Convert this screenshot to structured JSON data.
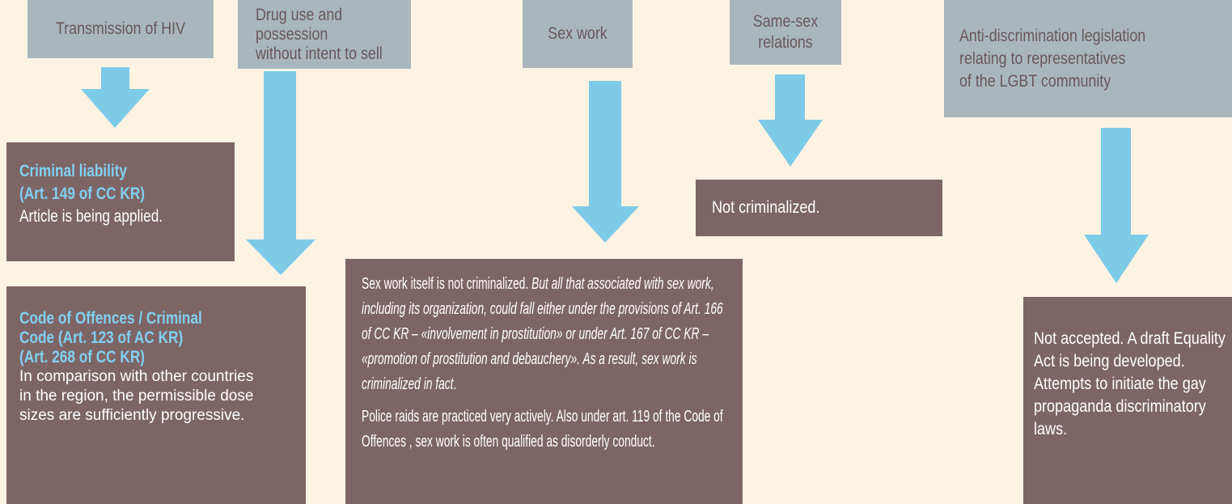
{
  "columns": [
    {
      "topic": [
        "Transmission of HIV"
      ],
      "result": {
        "heading": [
          "Criminal liability",
          "(Art. 149 of CC KR)"
        ],
        "body": [
          "Article is being applied."
        ]
      }
    },
    {
      "topic": [
        "Drug use and possession",
        "without intent to sell"
      ],
      "result": {
        "heading": [
          "Code of Offences / Criminal",
          "Code (Art. 123 of AC KR)",
          "(Art. 268 of CC KR)"
        ],
        "body": [
          "In comparison with other countries in the region, the permissible dose sizes are sufficiently progressive."
        ]
      }
    },
    {
      "topic": [
        "Sex work"
      ],
      "result": {
        "paragraphs": [
          [
            "Sex work itself is not criminalized. ",
            "But all that associated with sex work, including its organization, could fall either under the provisions of Art. 166 of CC KR – «involvement in prostitution» or under Art. 167 of CC KR – «promotion of prostitution and debauchery». As a result, sex work is criminalized in fact",
            "."
          ],
          [
            "Police raids are practiced very actively. Also under art. 119 of the Code of Offences , sex work is often qualified as disorderly conduct."
          ]
        ]
      }
    },
    {
      "topic": [
        "Same-sex",
        "relations"
      ],
      "result": {
        "body": [
          "Not criminalized."
        ]
      }
    },
    {
      "topic": [
        "Anti-discrimination legislation",
        "relating to representatives",
        "of the LGBT community"
      ],
      "result": {
        "body": [
          "Not accepted. A draft Equality Act is being developed.",
          "Attempts to initiate the gay propaganda discriminatory laws."
        ]
      }
    }
  ]
}
